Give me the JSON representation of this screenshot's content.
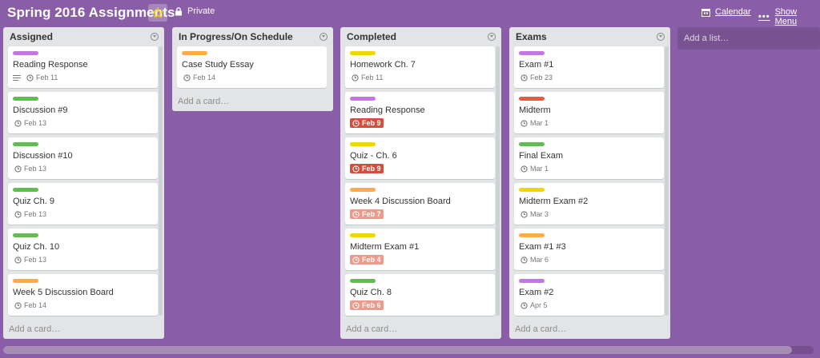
{
  "board": {
    "title": "Spring 2016 Assignments",
    "privacy": "Private",
    "calendar_label": "Calendar",
    "menu_label": "Show Menu",
    "add_list_label": "Add a list…",
    "star_color": "#f2d600"
  },
  "label_colors": {
    "purple": "#c377e0",
    "green": "#61bd4f",
    "orange": "#ffab4a",
    "yellow": "#f2d600",
    "red": "#eb5a46"
  },
  "lists": [
    {
      "title": "Assigned",
      "add_label": "Add a card…",
      "cards": [
        {
          "label": "purple",
          "title": "Reading Response",
          "desc": true,
          "due": "Feb 11",
          "due_state": "normal"
        },
        {
          "label": "green",
          "title": "Discussion #9",
          "desc": false,
          "due": "Feb 13",
          "due_state": "normal"
        },
        {
          "label": "green",
          "title": "Discussion #10",
          "desc": false,
          "due": "Feb 13",
          "due_state": "normal"
        },
        {
          "label": "green",
          "title": "Quiz Ch. 9",
          "desc": false,
          "due": "Feb 13",
          "due_state": "normal"
        },
        {
          "label": "green",
          "title": "Quiz Ch. 10",
          "desc": false,
          "due": "Feb 13",
          "due_state": "normal"
        },
        {
          "label": "orange",
          "title": "Week 5 Discussion Board",
          "desc": false,
          "due": "Feb 14",
          "due_state": "normal"
        }
      ]
    },
    {
      "title": "In Progress/On Schedule",
      "add_label": "Add a card…",
      "cards": [
        {
          "label": "orange",
          "title": "Case Study Essay",
          "desc": false,
          "due": "Feb 14",
          "due_state": "normal"
        }
      ]
    },
    {
      "title": "Completed",
      "add_label": "Add a card…",
      "cards": [
        {
          "label": "yellow",
          "title": "Homework Ch. 7",
          "desc": false,
          "due": "Feb 11",
          "due_state": "normal"
        },
        {
          "label": "purple",
          "title": "Reading Response",
          "desc": false,
          "due": "Feb 9",
          "due_state": "overdue"
        },
        {
          "label": "yellow",
          "title": "Quiz - Ch. 6",
          "desc": false,
          "due": "Feb 9",
          "due_state": "overdue"
        },
        {
          "label": "orange",
          "title": "Week 4 Discussion Board",
          "desc": false,
          "due": "Feb 7",
          "due_state": "past"
        },
        {
          "label": "yellow",
          "title": "Midterm Exam #1",
          "desc": false,
          "due": "Feb 4",
          "due_state": "past"
        },
        {
          "label": "green",
          "title": "Quiz Ch. 8",
          "desc": false,
          "due": "Feb 6",
          "due_state": "past"
        }
      ]
    },
    {
      "title": "Exams",
      "add_label": "Add a card…",
      "cards": [
        {
          "label": "purple",
          "title": "Exam #1",
          "desc": false,
          "due": "Feb 23",
          "due_state": "normal"
        },
        {
          "label": "red",
          "title": "Midterm",
          "desc": false,
          "due": "Mar 1",
          "due_state": "normal"
        },
        {
          "label": "green",
          "title": "Final Exam",
          "desc": false,
          "due": "Mar 1",
          "due_state": "normal"
        },
        {
          "label": "yellow",
          "title": "Midterm Exam #2",
          "desc": false,
          "due": "Mar 3",
          "due_state": "normal"
        },
        {
          "label": "orange",
          "title": "Exam #1 #3",
          "desc": false,
          "due": "Mar 6",
          "due_state": "normal"
        },
        {
          "label": "purple",
          "title": "Exam #2",
          "desc": false,
          "due": "Apr 5",
          "due_state": "normal"
        }
      ]
    }
  ]
}
